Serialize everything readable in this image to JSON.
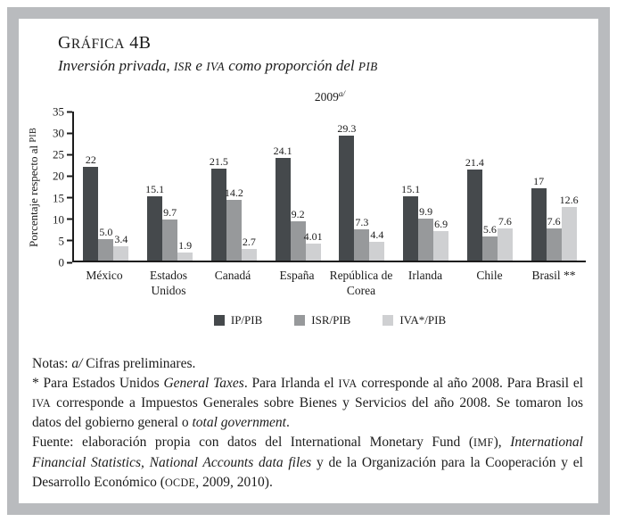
{
  "frame_color": "#b9bbbe",
  "figure": {
    "label": "Gráfica 4B",
    "label_rich": [
      {
        "t": "G"
      },
      {
        "t": "ráfica",
        "sc": true
      },
      {
        "t": " 4B"
      }
    ],
    "subtitle": "Inversión privada, ISR e IVA como proporción del PIB",
    "subtitle_rich": [
      {
        "t": "Inversión privada, "
      },
      {
        "t": "isr",
        "sc": true
      },
      {
        "t": " e "
      },
      {
        "t": "iva",
        "sc": true
      },
      {
        "t": " como proporción del "
      },
      {
        "t": "pib",
        "sc": true
      }
    ]
  },
  "chart_data": {
    "type": "bar",
    "title": "2009",
    "title_superscript": "a/",
    "title_rich": [
      {
        "t": "2009"
      },
      {
        "t": "a/",
        "sup": true
      }
    ],
    "ylabel": "Porcentaje respecto al PIB",
    "ylabel_rich": [
      {
        "t": "Porcentaje respecto al "
      },
      {
        "t": "pib",
        "sc": true
      }
    ],
    "xlabel": "",
    "ylim": [
      0,
      35
    ],
    "yticks": [
      0,
      5,
      10,
      15,
      20,
      25,
      30,
      35
    ],
    "grid": false,
    "legend_position": "bottom",
    "categories": [
      "México",
      "Estados Unidos",
      "Canadá",
      "España",
      "República de Corea",
      "Irlanda",
      "Chile",
      "Brasil **"
    ],
    "series": [
      {
        "name": "IP/PIB",
        "color": "#45494c",
        "values": [
          22,
          15.1,
          21.5,
          24.1,
          29.3,
          15.1,
          21.4,
          17
        ],
        "labels": [
          "22",
          "15.1",
          "21.5",
          "24.1",
          "29.3",
          "15.1",
          "21.4",
          "17"
        ]
      },
      {
        "name": "ISR/PIB",
        "color": "#97999b",
        "values": [
          5.0,
          9.7,
          14.2,
          9.2,
          7.3,
          9.9,
          5.6,
          7.6
        ],
        "labels": [
          "5.0",
          "9.7",
          "14.2",
          "9.2",
          "7.3",
          "9.9",
          "5.6",
          "7.6"
        ]
      },
      {
        "name": "IVA*/PIB",
        "color": "#cfd0d2",
        "values": [
          3.4,
          1.9,
          2.7,
          4.01,
          4.4,
          6.9,
          7.6,
          12.6
        ],
        "labels": [
          "3.4",
          "1.9",
          "2.7",
          "4.01",
          "4.4",
          "6.9",
          "7.6",
          "12.6"
        ]
      }
    ]
  },
  "notes": {
    "line1": "Notas: a/ Cifras preliminares.",
    "line1_rich": [
      {
        "t": "Notas: "
      },
      {
        "t": "a/",
        "i": true
      },
      {
        "t": " Cifras preliminares."
      }
    ],
    "asterisk": "* Para Estados Unidos General Taxes. Para Irlanda el IVA corresponde al año 2008. Para Brasil el IVA corresponde a Impuestos Generales sobre Bienes y Servicios del año 2008. Se tomaron los datos del gobierno general o total government.",
    "asterisk_rich": [
      {
        "t": "* Para Estados Unidos "
      },
      {
        "t": "General Taxes",
        "i": true
      },
      {
        "t": ". Para Irlanda el "
      },
      {
        "t": "iva",
        "sc": true
      },
      {
        "t": " corresponde al año 2008. Para Brasil el "
      },
      {
        "t": "iva",
        "sc": true
      },
      {
        "t": " corresponde a Impuestos Generales sobre Bienes y Servicios del año 2008. Se tomaron los datos del gobierno general o "
      },
      {
        "t": "total government",
        "i": true
      },
      {
        "t": "."
      }
    ],
    "fuente": "Fuente: elaboración propia con datos del International Monetary Fund (IMF), International Financial Statistics, National Accounts data files y de la Organización para la Cooperación y el Desarrollo Económico (OCDE, 2009, 2010).",
    "fuente_rich": [
      {
        "t": "Fuente: elaboración propia con datos del International Monetary Fund ("
      },
      {
        "t": "imf",
        "sc": true
      },
      {
        "t": "), "
      },
      {
        "t": "International Financial Statistics, National Accounts data files",
        "i": true
      },
      {
        "t": " y de la Organización para la Cooperación y el Desarrollo Económico ("
      },
      {
        "t": "ocde",
        "sc": true
      },
      {
        "t": ", 2009, 2010)."
      }
    ]
  }
}
